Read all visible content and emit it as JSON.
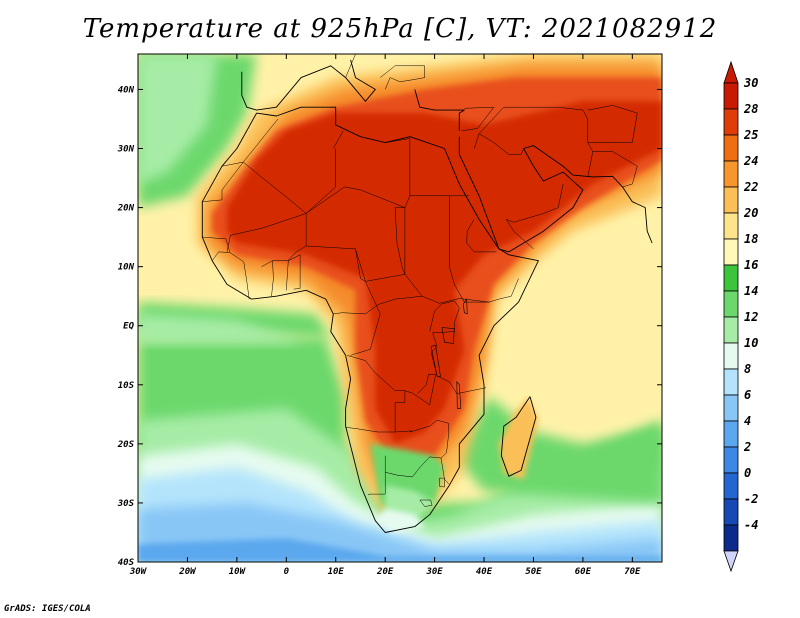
{
  "title": "Temperature at 925hPa [C], VT: 2021082912",
  "credit": "GrADS: IGES/COLA",
  "map": {
    "lon_range": [
      -30,
      76
    ],
    "lat_range": [
      -40,
      46
    ],
    "lat_ticks": [
      {
        "value": 40,
        "label": "40N"
      },
      {
        "value": 30,
        "label": "30N"
      },
      {
        "value": 20,
        "label": "20N"
      },
      {
        "value": 10,
        "label": "10N"
      },
      {
        "value": 0,
        "label": "EQ"
      },
      {
        "value": -10,
        "label": "10S"
      },
      {
        "value": -20,
        "label": "20S"
      },
      {
        "value": -30,
        "label": "30S"
      },
      {
        "value": -40,
        "label": "40S"
      }
    ],
    "lon_ticks": [
      {
        "value": -30,
        "label": "30W"
      },
      {
        "value": -20,
        "label": "20W"
      },
      {
        "value": -10,
        "label": "10W"
      },
      {
        "value": 0,
        "label": "0"
      },
      {
        "value": 10,
        "label": "10E"
      },
      {
        "value": 20,
        "label": "20E"
      },
      {
        "value": 30,
        "label": "30E"
      },
      {
        "value": 40,
        "label": "40E"
      },
      {
        "value": 50,
        "label": "50E"
      },
      {
        "value": 60,
        "label": "60E"
      },
      {
        "value": 70,
        "label": "70E"
      }
    ]
  },
  "colorbar": {
    "levels": [
      {
        "label": "30",
        "color": "#c81a02"
      },
      {
        "label": "28",
        "color": "#e03c0a"
      },
      {
        "label": "25",
        "color": "#f06e12"
      },
      {
        "label": "24",
        "color": "#f7962c"
      },
      {
        "label": "22",
        "color": "#fbbf58"
      },
      {
        "label": "20",
        "color": "#fde48a"
      },
      {
        "label": "18",
        "color": "#fff8b8"
      },
      {
        "label": "16",
        "color": "#3cc43c"
      },
      {
        "label": "14",
        "color": "#6cd86c"
      },
      {
        "label": "12",
        "color": "#a6eca6"
      },
      {
        "label": "10",
        "color": "#e6fbf0"
      },
      {
        "label": "8",
        "color": "#b4e4fc"
      },
      {
        "label": "6",
        "color": "#88c6f6"
      },
      {
        "label": "4",
        "color": "#5ca8ee"
      },
      {
        "label": "2",
        "color": "#3c88e4"
      },
      {
        "label": "0",
        "color": "#2466d0"
      },
      {
        "label": "-2",
        "color": "#1848b4"
      },
      {
        "label": "-4",
        "color": "#0c2a8a"
      }
    ],
    "top_color": "#c81a02",
    "bottom_color": "#cfd4fb"
  },
  "palette": {
    "hot": "#d42a04",
    "warm1": "#e8501a",
    "warm2": "#f58a2c",
    "warm3": "#fbbf58",
    "pale": "#fde48a",
    "cream": "#fff2a8",
    "green_dark": "#3cc43c",
    "green": "#6cd86c",
    "green_light": "#a6eca6",
    "mint": "#e6fbf0",
    "blue_light": "#b4e4fc",
    "blue": "#88c6f6",
    "blue_mid": "#5ca8ee",
    "blue_deep": "#3c88e4"
  }
}
